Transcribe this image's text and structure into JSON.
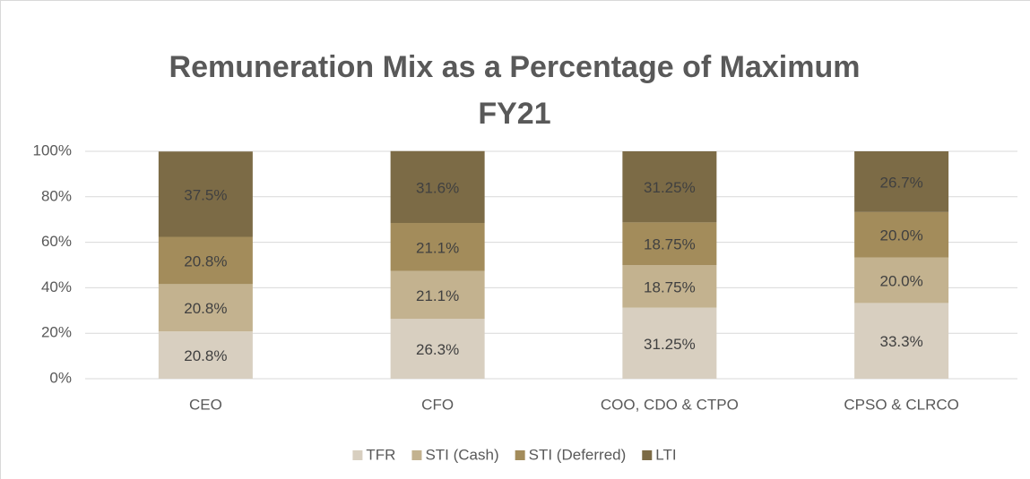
{
  "chart_data": {
    "type": "stacked_bar",
    "title": [
      "Remuneration Mix as a Percentage of Maximum",
      "FY21"
    ],
    "categories": [
      "CEO",
      "CFO",
      "COO, CDO & CTPO",
      "CPSO & CLRCO"
    ],
    "series": [
      {
        "name": "TFR",
        "color": "#d8cfc0",
        "values": [
          20.8,
          26.3,
          31.25,
          33.3
        ],
        "value_labels": [
          "20.8%",
          "26.3%",
          "31.25%",
          "33.3%"
        ]
      },
      {
        "name": "STI (Cash)",
        "color": "#c3b28f",
        "values": [
          20.8,
          21.1,
          18.75,
          20.0
        ],
        "value_labels": [
          "20.8%",
          "21.1%",
          "18.75%",
          "20.0%"
        ]
      },
      {
        "name": "STI (Deferred)",
        "color": "#a38c5b",
        "values": [
          20.8,
          21.1,
          18.75,
          20.0
        ],
        "value_labels": [
          "20.8%",
          "21.1%",
          "18.75%",
          "20.0%"
        ]
      },
      {
        "name": "LTI",
        "color": "#7c6b46",
        "values": [
          37.5,
          31.6,
          31.25,
          26.7
        ],
        "value_labels": [
          "37.5%",
          "31.6%",
          "31.25%",
          "26.7%"
        ]
      }
    ],
    "ylim": [
      0,
      100
    ],
    "yticks": [
      {
        "value": 0,
        "label": "0%"
      },
      {
        "value": 20,
        "label": "20%"
      },
      {
        "value": 40,
        "label": "40%"
      },
      {
        "value": 60,
        "label": "60%"
      },
      {
        "value": 80,
        "label": "80%"
      },
      {
        "value": 100,
        "label": "100%"
      }
    ],
    "grid": true,
    "legend": "bottom"
  }
}
